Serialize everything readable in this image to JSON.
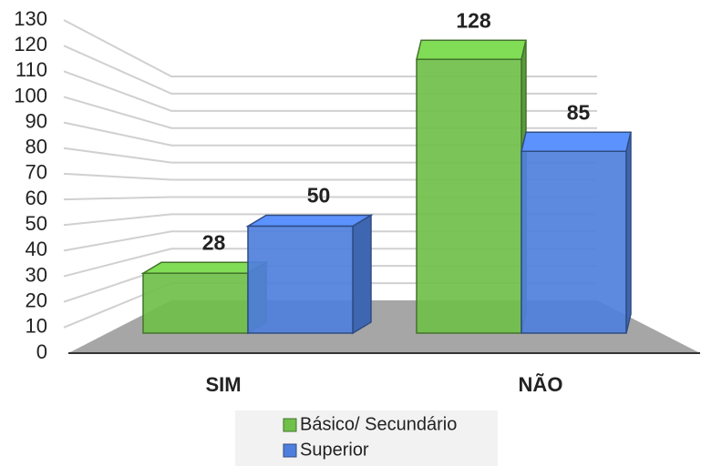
{
  "chart_data": {
    "type": "bar3d",
    "categories": [
      "SIM",
      "NÃO"
    ],
    "series": [
      {
        "name": "Básico/ Secundário",
        "color": "#70c04a",
        "values": [
          28,
          128
        ]
      },
      {
        "name": "Superior",
        "color": "#4f7fdc",
        "values": [
          50,
          85
        ]
      }
    ],
    "ylim": [
      0,
      130
    ],
    "yticks": [
      0,
      10,
      20,
      30,
      40,
      50,
      60,
      70,
      80,
      90,
      100,
      110,
      120,
      130
    ],
    "grid": true,
    "legend": "bottom"
  }
}
